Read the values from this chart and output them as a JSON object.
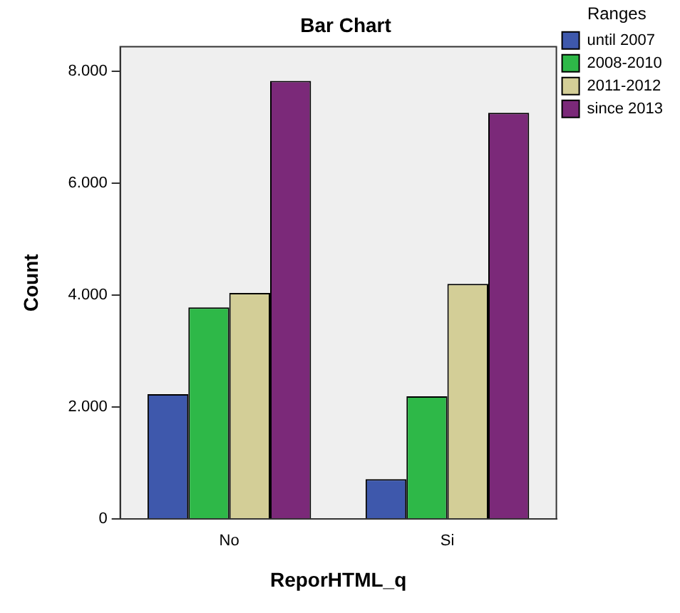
{
  "chart_data": {
    "type": "bar",
    "title": "Bar Chart",
    "xlabel": "ReporHTML_q",
    "ylabel": "Count",
    "legend_title": "Ranges",
    "legend": "right",
    "grid": false,
    "categories": [
      "No",
      "Si"
    ],
    "series": [
      {
        "name": "until 2007",
        "color": "#3e58ac",
        "values": [
          2230,
          710
        ]
      },
      {
        "name": "2008-2010",
        "color": "#2eb848",
        "values": [
          3780,
          2190
        ]
      },
      {
        "name": "2011-2012",
        "color": "#d3ce97",
        "values": [
          4040,
          4200
        ]
      },
      {
        "name": "since 2013",
        "color": "#7b2979",
        "values": [
          7830,
          7260
        ]
      }
    ],
    "ylim": [
      0,
      8440
    ],
    "yticks": [
      0,
      {
        "value": 2000,
        "label": "2.000"
      },
      {
        "value": 4000,
        "label": "4.000"
      },
      {
        "value": 6000,
        "label": "6.000"
      },
      {
        "value": 8000,
        "label": "8.000"
      }
    ]
  }
}
